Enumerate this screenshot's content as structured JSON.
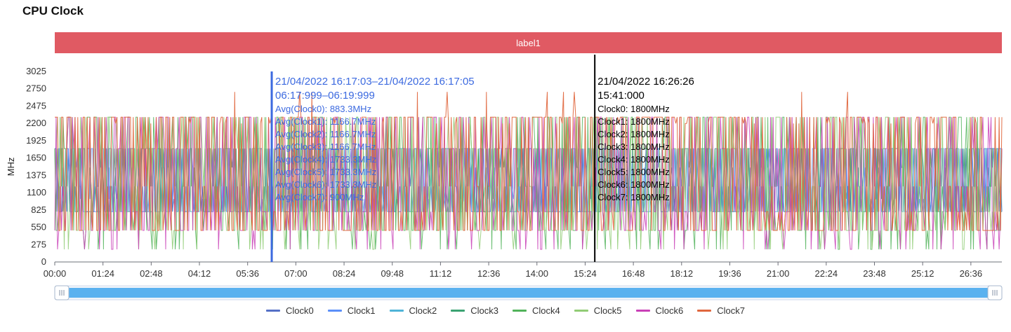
{
  "page": {
    "title": "CPU Clock"
  },
  "band": {
    "label": "label1",
    "color": "#e05a63"
  },
  "chart_data": {
    "type": "line",
    "title": "CPU Clock",
    "ylabel": "MHz",
    "xlabel": "",
    "ylim": [
      0,
      3025
    ],
    "yticks": [
      0,
      275,
      550,
      825,
      1100,
      1375,
      1650,
      1925,
      2200,
      2475,
      2750,
      3025
    ],
    "x_tick_labels": [
      "00:00",
      "01:24",
      "02:48",
      "04:12",
      "05:36",
      "07:00",
      "08:24",
      "09:48",
      "11:12",
      "12:36",
      "14:00",
      "15:24",
      "16:48",
      "18:12",
      "19:36",
      "21:00",
      "22:24",
      "23:48",
      "25:12",
      "26:36"
    ],
    "x_tick_minutes": [
      0,
      1.4,
      2.8,
      4.2,
      5.6,
      7.0,
      8.4,
      9.8,
      11.2,
      12.6,
      14.0,
      15.4,
      16.8,
      18.2,
      19.6,
      21.0,
      22.4,
      23.8,
      25.2,
      26.6
    ],
    "x_range_minutes": [
      0,
      27.5
    ],
    "grid": false,
    "legend_position": "bottom",
    "series": [
      {
        "name": "Clock0",
        "color": "#5470c6"
      },
      {
        "name": "Clock1",
        "color": "#5b8ff9"
      },
      {
        "name": "Clock2",
        "color": "#4fb4d8"
      },
      {
        "name": "Clock3",
        "color": "#3ba272"
      },
      {
        "name": "Clock4",
        "color": "#51b35a"
      },
      {
        "name": "Clock5",
        "color": "#91cc75"
      },
      {
        "name": "Clock6",
        "color": "#c940b7"
      },
      {
        "name": "Clock7",
        "color": "#e0673e"
      }
    ],
    "series_levels_mhz": [
      200,
      500,
      800,
      1000,
      1200,
      1500,
      1800,
      2000,
      2300
    ],
    "annotations": {
      "range": {
        "x_minutes": 6.3,
        "color": "#3c6ae0",
        "line1": "21/04/2022 16:17:03–21/04/2022 16:17:05",
        "line2": "06:17:999–06:19:999",
        "items": [
          "Avg(Clock0): 883.3MHz",
          "Avg(Clock1): 1166.7MHz",
          "Avg(Clock2): 1166.7MHz",
          "Avg(Clock3): 1166.7MHz",
          "Avg(Clock4): 1733.3MHz",
          "Avg(Clock5): 1733.3MHz",
          "Avg(Clock6): 1733.3MHz",
          "Avg(Clock7): 900MHz"
        ]
      },
      "point": {
        "x_minutes": 15.68,
        "color": "#000000",
        "line1": "21/04/2022 16:26:26",
        "line2": "15:41:000",
        "items": [
          "Clock0: 1800MHz",
          "Clock1: 1800MHz",
          "Clock2: 1800MHz",
          "Clock3: 1800MHz",
          "Clock4: 1800MHz",
          "Clock5: 1800MHz",
          "Clock6: 1800MHz",
          "Clock7: 1800MHz"
        ]
      }
    }
  },
  "zoom": {
    "start_percent": 0,
    "end_percent": 100,
    "fill_color": "#5ab1ef"
  }
}
